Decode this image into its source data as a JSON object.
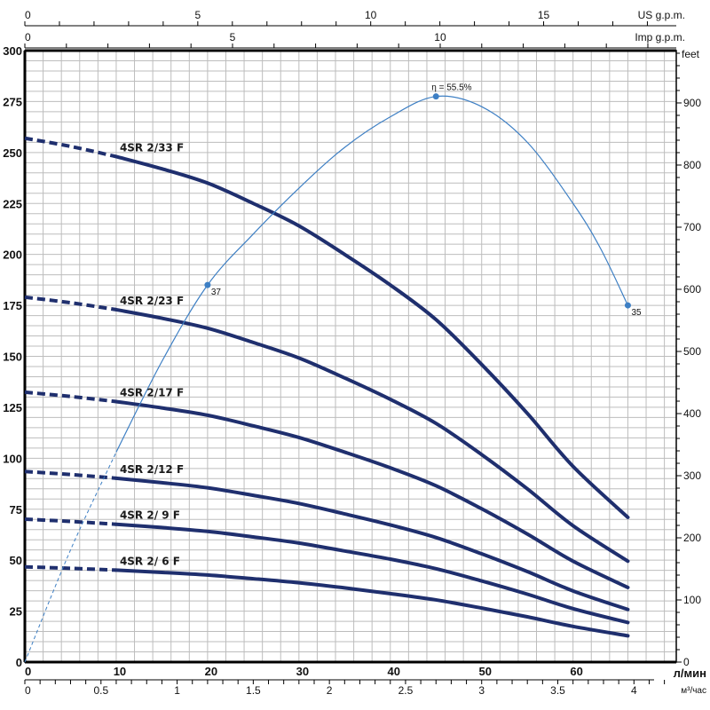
{
  "chart_data": {
    "type": "line",
    "x_unit": "л/мин",
    "y_unit_right": "feet",
    "top_axes": [
      {
        "unit": "US g.p.m.",
        "ticks": [
          0,
          5,
          10,
          15
        ]
      },
      {
        "unit": "Imp g.p.m.",
        "ticks": [
          0,
          5,
          10
        ]
      }
    ],
    "bottom_axis_2": {
      "unit": "м³/час",
      "ticks": [
        0,
        0.5,
        1,
        1.5,
        2,
        2.5,
        3,
        3.5,
        4
      ]
    },
    "xlim": [
      0,
      71.3
    ],
    "ylim": [
      0,
      300
    ],
    "x_ticks": [
      0,
      10,
      20,
      30,
      40,
      50,
      60
    ],
    "y_ticks": [
      0,
      25,
      50,
      75,
      100,
      125,
      150,
      175,
      200,
      225,
      250,
      275,
      300
    ],
    "y_right_ticks": [
      0,
      100,
      200,
      300,
      400,
      500,
      600,
      700,
      800,
      900
    ],
    "grid": true,
    "dashed_below_x": 10,
    "x": [
      0,
      5,
      10,
      15,
      20,
      25,
      30,
      35,
      40,
      45,
      50,
      55,
      60,
      66
    ],
    "series": [
      {
        "name": "4SR 2/33 F",
        "values": [
          257,
          253,
          248,
          242,
          235,
          225,
          214,
          200,
          185,
          168,
          146,
          122,
          96,
          71
        ]
      },
      {
        "name": "4SR 2/23 F",
        "values": [
          179,
          176.3,
          172.9,
          168.7,
          163.8,
          156.8,
          149.2,
          139.4,
          128.9,
          117.1,
          101.8,
          85,
          66.9,
          49.5
        ]
      },
      {
        "name": "4SR 2/17 F",
        "values": [
          132.4,
          130.3,
          127.8,
          124.7,
          121.1,
          115.9,
          110.2,
          103,
          95.3,
          86.5,
          75.2,
          62.8,
          49.5,
          36.6
        ]
      },
      {
        "name": "4SR 2/12 F",
        "values": [
          93.5,
          92,
          90.2,
          88,
          85.5,
          81.8,
          77.8,
          72.7,
          67.3,
          61.1,
          53.1,
          44.4,
          34.9,
          25.8
        ]
      },
      {
        "name": "4SR 2/ 9 F",
        "values": [
          70.1,
          69,
          67.6,
          66,
          64.1,
          61.4,
          58.4,
          54.5,
          50.5,
          45.8,
          39.8,
          33.3,
          26.2,
          19.4
        ]
      },
      {
        "name": "4SR 2/ 6 F",
        "values": [
          46.7,
          46,
          45.1,
          44,
          42.7,
          40.9,
          38.9,
          36.4,
          33.6,
          30.5,
          26.5,
          22.2,
          17.5,
          12.9
        ]
      }
    ],
    "efficiency": {
      "x": [
        0,
        5,
        10,
        15,
        20,
        25,
        30,
        35,
        40,
        45,
        50,
        55,
        60,
        63,
        66
      ],
      "values_percent": [
        0,
        11,
        20.6,
        29.5,
        37,
        42,
        46.5,
        50.5,
        53.5,
        55.5,
        54.5,
        51,
        45,
        40.6,
        35
      ],
      "marked_points": [
        {
          "x": 20,
          "value": 37,
          "label": "37"
        },
        {
          "x": 45,
          "value": 55.5,
          "label": "η = 55.5%"
        },
        {
          "x": 66,
          "value": 35,
          "label": "35"
        }
      ]
    },
    "colors": {
      "pump_curves": "#1f2f6e",
      "efficiency": "#3d7fc4",
      "grid": "#bdbdbd",
      "axis": "#000000"
    }
  }
}
